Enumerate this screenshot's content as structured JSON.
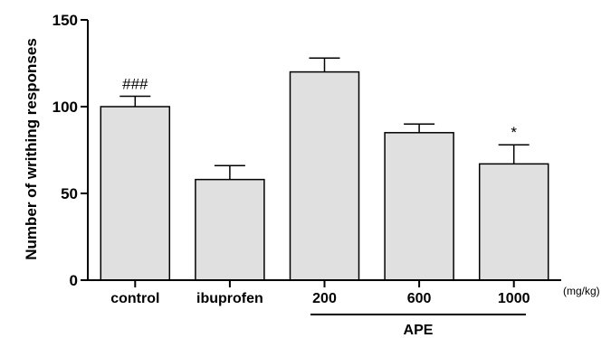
{
  "chart_data": {
    "type": "bar",
    "ylabel": "Number of writhing responses",
    "ylim": [
      0,
      150
    ],
    "yticks": [
      0,
      50,
      100,
      150
    ],
    "categories": [
      "control",
      "ibuprofen",
      "200",
      "600",
      "1000"
    ],
    "values": [
      100,
      58,
      120,
      85,
      67
    ],
    "errors": [
      6,
      8,
      8,
      5,
      11
    ],
    "annotations": [
      "###",
      "",
      "",
      "",
      "*"
    ],
    "unit_label": "(mg/kg)",
    "group_label": "APE",
    "bar_color": "#e0e0e0",
    "grid": false
  }
}
